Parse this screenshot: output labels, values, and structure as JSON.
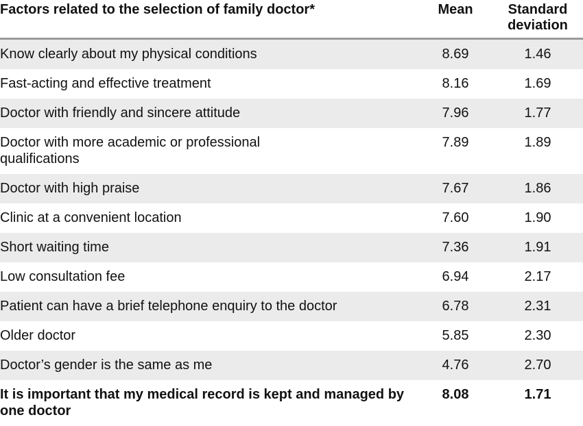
{
  "table": {
    "headers": [
      "Factors related to the selection of family doctor*",
      "Mean",
      "Standard deviation"
    ],
    "rows": [
      {
        "factor": "Know clearly about my physical conditions",
        "mean": "8.69",
        "sd": "1.46"
      },
      {
        "factor": "Fast-acting and effective treatment",
        "mean": "8.16",
        "sd": "1.69"
      },
      {
        "factor": "Doctor with friendly and sincere attitude",
        "mean": "7.96",
        "sd": "1.77"
      },
      {
        "factor": "Doctor with more academic or professional qualifications",
        "mean": "7.89",
        "sd": "1.89"
      },
      {
        "factor": "Doctor with high praise",
        "mean": "7.67",
        "sd": "1.86"
      },
      {
        "factor": "Clinic at a convenient location",
        "mean": "7.60",
        "sd": "1.90"
      },
      {
        "factor": "Short waiting time",
        "mean": "7.36",
        "sd": "1.91"
      },
      {
        "factor": "Low consultation fee",
        "mean": "6.94",
        "sd": "2.17"
      },
      {
        "factor": "Patient can have a brief telephone enquiry to the doctor",
        "mean": "6.78",
        "sd": "2.31"
      },
      {
        "factor": "Older doctor",
        "mean": "5.85",
        "sd": "2.30"
      },
      {
        "factor": "Doctor’s gender is the same as me",
        "mean": "4.76",
        "sd": "2.70"
      },
      {
        "factor": "It is important that my medical record is kept and managed by one doctor",
        "mean": "8.08",
        "sd": "1.71",
        "bold": true
      }
    ],
    "shade_color": "#ebebeb"
  }
}
